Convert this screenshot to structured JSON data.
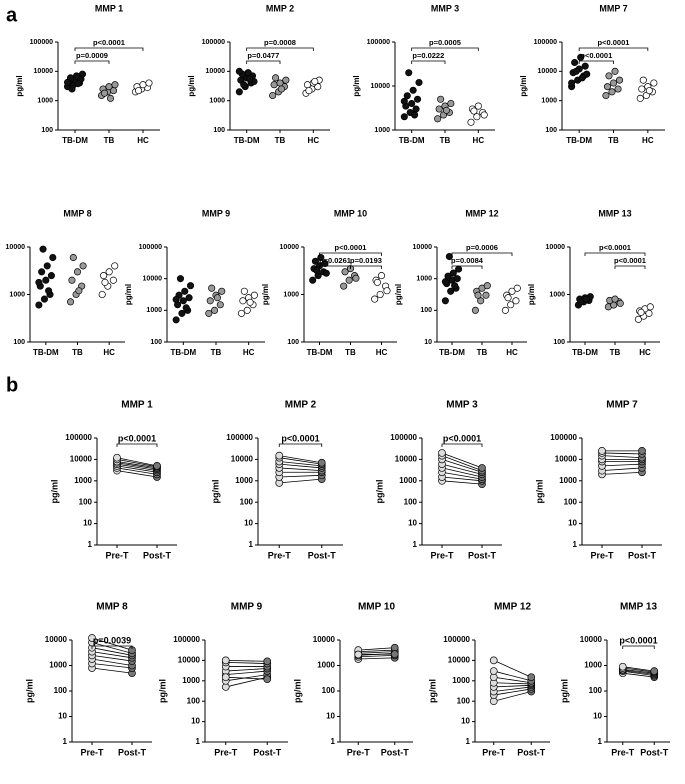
{
  "panel_labels": [
    "a",
    "b"
  ],
  "chart_data": [
    {
      "type": "dot",
      "title": "MMP 1",
      "ylabel": "pg/ml",
      "log_scale": true,
      "ylim": [
        100,
        100000
      ],
      "yticks": [
        100,
        1000,
        10000,
        100000
      ],
      "categories": [
        "TB-DM",
        "TB",
        "HC"
      ],
      "groups": [
        {
          "color": "#111111",
          "values": [
            3000,
            3500,
            4000,
            4500,
            5000,
            5500,
            6000,
            7000,
            8000,
            2500,
            3800,
            4200
          ]
        },
        {
          "color": "#999999",
          "values": [
            1500,
            2000,
            2200,
            2500,
            3000,
            3500,
            1800,
            1200
          ]
        },
        {
          "color": "#ffffff",
          "values": [
            2000,
            2500,
            2800,
            3000,
            3500,
            4000,
            2200
          ]
        }
      ],
      "annotations": [
        {
          "label": "p<0.0001",
          "between": [
            "TB-DM",
            "HC"
          ]
        },
        {
          "label": "p=0.0009",
          "between": [
            "TB-DM",
            "TB"
          ]
        }
      ]
    },
    {
      "type": "dot",
      "title": "MMP 2",
      "ylabel": "pg/ml",
      "log_scale": true,
      "ylim": [
        100,
        100000
      ],
      "yticks": [
        100,
        1000,
        10000,
        100000
      ],
      "categories": [
        "TB-DM",
        "TB",
        "HC"
      ],
      "groups": [
        {
          "color": "#111111",
          "values": [
            2000,
            3000,
            4000,
            5000,
            6000,
            7000,
            8000,
            9000,
            4500,
            3500,
            5500,
            10000
          ]
        },
        {
          "color": "#999999",
          "values": [
            1500,
            2000,
            3000,
            3500,
            4000,
            5000,
            6000,
            2500
          ]
        },
        {
          "color": "#ffffff",
          "values": [
            1800,
            2500,
            3000,
            3500,
            4000,
            5000,
            2200,
            4500
          ]
        }
      ],
      "annotations": [
        {
          "label": "p=0.0008",
          "between": [
            "TB-DM",
            "HC"
          ]
        },
        {
          "label": "p=0.0477",
          "between": [
            "TB-DM",
            "TB"
          ]
        }
      ]
    },
    {
      "type": "dot",
      "title": "MMP 3",
      "ylabel": "pg/ml",
      "log_scale": true,
      "ylim": [
        1000,
        100000
      ],
      "yticks": [
        1000,
        10000,
        100000
      ],
      "categories": [
        "TB-DM",
        "TB",
        "HC"
      ],
      "groups": [
        {
          "color": "#111111",
          "values": [
            2000,
            2500,
            3000,
            3500,
            4000,
            5000,
            6000,
            8000,
            12000,
            20000,
            2200,
            4500
          ]
        },
        {
          "color": "#999999",
          "values": [
            1800,
            2200,
            2500,
            3000,
            3500,
            4000,
            5000,
            2800
          ]
        },
        {
          "color": "#ffffff",
          "values": [
            1500,
            2000,
            2500,
            3000,
            3500,
            2200,
            2700
          ]
        }
      ],
      "annotations": [
        {
          "label": "p=0.0005",
          "between": [
            "TB-DM",
            "HC"
          ]
        },
        {
          "label": "p=0.0222",
          "between": [
            "TB-DM",
            "TB"
          ]
        }
      ]
    },
    {
      "type": "dot",
      "title": "MMP 7",
      "ylabel": "pg/ml",
      "log_scale": true,
      "ylim": [
        100,
        100000
      ],
      "yticks": [
        100,
        1000,
        10000,
        100000
      ],
      "categories": [
        "TB-DM",
        "TB",
        "HC"
      ],
      "groups": [
        {
          "color": "#111111",
          "values": [
            3000,
            5000,
            7000,
            9000,
            12000,
            15000,
            20000,
            30000,
            8000,
            10000,
            6000,
            4000
          ]
        },
        {
          "color": "#999999",
          "values": [
            1500,
            2000,
            2500,
            3000,
            4000,
            5000,
            7000,
            10000
          ]
        },
        {
          "color": "#ffffff",
          "values": [
            1200,
            1500,
            2000,
            2500,
            3000,
            4000,
            5000,
            2200
          ]
        }
      ],
      "annotations": [
        {
          "label": "p<0.0001",
          "between": [
            "TB-DM",
            "HC"
          ]
        },
        {
          "label": "p<0.0001",
          "between": [
            "TB-DM",
            "TB"
          ]
        }
      ]
    },
    {
      "type": "dot",
      "title": "MMP 8",
      "ylabel": "pg/ml",
      "log_scale": true,
      "ylim": [
        100,
        10000
      ],
      "yticks": [
        100,
        1000,
        10000
      ],
      "categories": [
        "TB-DM",
        "TB",
        "HC"
      ],
      "groups": [
        {
          "color": "#111111",
          "values": [
            600,
            800,
            1000,
            1500,
            2000,
            2500,
            3000,
            4000,
            6000,
            9000,
            1200,
            1800
          ]
        },
        {
          "color": "#999999",
          "values": [
            700,
            1000,
            1500,
            2000,
            3000,
            4000,
            6000,
            1200
          ]
        },
        {
          "color": "#ffffff",
          "values": [
            1000,
            1500,
            2000,
            2500,
            3000,
            4000,
            1800
          ]
        }
      ],
      "annotations": []
    },
    {
      "type": "dot",
      "title": "MMP 9",
      "ylabel": "pg/ml",
      "log_scale": true,
      "ylim": [
        100,
        100000
      ],
      "yticks": [
        100,
        1000,
        10000,
        100000
      ],
      "categories": [
        "TB-DM",
        "TB",
        "HC"
      ],
      "groups": [
        {
          "color": "#111111",
          "values": [
            500,
            800,
            1000,
            1500,
            2000,
            2500,
            3000,
            4000,
            6000,
            10000,
            1200,
            2200
          ]
        },
        {
          "color": "#999999",
          "values": [
            800,
            1000,
            1500,
            2000,
            3000,
            4000,
            5000,
            2500
          ]
        },
        {
          "color": "#ffffff",
          "values": [
            800,
            1000,
            1500,
            2000,
            2500,
            3000,
            4000,
            1800
          ]
        }
      ],
      "annotations": []
    },
    {
      "type": "dot",
      "title": "MMP 10",
      "ylabel": "pg/ml",
      "log_scale": true,
      "ylim": [
        100,
        10000
      ],
      "yticks": [
        100,
        1000,
        10000
      ],
      "categories": [
        "TB-DM",
        "TB",
        "HC"
      ],
      "groups": [
        {
          "color": "#111111",
          "values": [
            2000,
            2500,
            3000,
            3500,
            4000,
            4500,
            5000,
            6000,
            2800,
            3200
          ]
        },
        {
          "color": "#999999",
          "values": [
            1500,
            2000,
            2500,
            3000,
            3500,
            2200
          ]
        },
        {
          "color": "#ffffff",
          "values": [
            800,
            1000,
            1500,
            2000,
            2500,
            1200,
            1800
          ]
        }
      ],
      "annotations": [
        {
          "label": "p<0.0001",
          "between": [
            "TB-DM",
            "HC"
          ]
        },
        {
          "label": "p=0.0261",
          "between": [
            "TB-DM",
            "TB"
          ]
        },
        {
          "label": "p=0.0193",
          "between": [
            "TB",
            "HC"
          ]
        }
      ]
    },
    {
      "type": "dot",
      "title": "MMP 12",
      "ylabel": "pg/ml",
      "log_scale": true,
      "ylim": [
        10,
        10000
      ],
      "yticks": [
        10,
        100,
        1000,
        10000
      ],
      "categories": [
        "TB-DM",
        "TB",
        "HC"
      ],
      "groups": [
        {
          "color": "#111111",
          "values": [
            200,
            400,
            500,
            700,
            900,
            1000,
            1200,
            1500,
            2000,
            5000,
            600,
            800
          ]
        },
        {
          "color": "#999999",
          "values": [
            100,
            200,
            300,
            400,
            500,
            600,
            300
          ]
        },
        {
          "color": "#ffffff",
          "values": [
            100,
            150,
            200,
            300,
            400,
            500,
            250
          ]
        }
      ],
      "annotations": [
        {
          "label": "p=0.0006",
          "between": [
            "TB-DM",
            "HC"
          ]
        },
        {
          "label": "p=0.0084",
          "between": [
            "TB-DM",
            "TB"
          ]
        }
      ]
    },
    {
      "type": "dot",
      "title": "MMP 13",
      "ylabel": "pg/ml",
      "log_scale": true,
      "ylim": [
        100,
        10000
      ],
      "yticks": [
        100,
        1000,
        10000
      ],
      "categories": [
        "TB-DM",
        "TB",
        "HC"
      ],
      "groups": [
        {
          "color": "#111111",
          "values": [
            600,
            700,
            750,
            800,
            850,
            900,
            700,
            800
          ]
        },
        {
          "color": "#999999",
          "values": [
            550,
            600,
            700,
            750,
            800,
            650
          ]
        },
        {
          "color": "#ffffff",
          "values": [
            300,
            350,
            400,
            450,
            500,
            550,
            420
          ]
        }
      ],
      "annotations": [
        {
          "label": "p<0.0001",
          "between": [
            "TB-DM",
            "HC"
          ]
        },
        {
          "label": "p<0.0001",
          "between": [
            "TB",
            "HC"
          ]
        }
      ]
    },
    {
      "type": "paired",
      "title": "MMP 1",
      "ylabel": "pg/ml",
      "log_scale": true,
      "ylim": [
        1,
        100000
      ],
      "yticks": [
        1,
        10,
        100,
        1000,
        10000,
        100000
      ],
      "categories": [
        "Pre-T",
        "Post-T"
      ],
      "groups": [
        {
          "color": "#dddddd",
          "values": [
            3000,
            4000,
            5000,
            6000,
            7000,
            8000,
            10000,
            12000
          ]
        },
        {
          "color": "#777777",
          "values": [
            1500,
            2000,
            2500,
            3000,
            3500,
            4000,
            4500,
            5000
          ]
        }
      ],
      "annotations": [
        {
          "label": "p<0.0001",
          "between": [
            "Pre-T",
            "Post-T"
          ]
        }
      ]
    },
    {
      "type": "paired",
      "title": "MMP 2",
      "ylabel": "pg/ml",
      "log_scale": true,
      "ylim": [
        1,
        100000
      ],
      "yticks": [
        1,
        10,
        100,
        1000,
        10000,
        100000
      ],
      "categories": [
        "Pre-T",
        "Post-T"
      ],
      "groups": [
        {
          "color": "#dddddd",
          "values": [
            800,
            1500,
            2500,
            4000,
            6000,
            8000,
            12000,
            15000
          ]
        },
        {
          "color": "#777777",
          "values": [
            1200,
            1800,
            2500,
            3000,
            4000,
            5000,
            6000,
            7000
          ]
        }
      ],
      "annotations": [
        {
          "label": "p<0.0001",
          "between": [
            "Pre-T",
            "Post-T"
          ]
        }
      ]
    },
    {
      "type": "paired",
      "title": "MMP 3",
      "ylabel": "pg/ml",
      "log_scale": true,
      "ylim": [
        1,
        100000
      ],
      "yticks": [
        1,
        10,
        100,
        1000,
        10000,
        100000
      ],
      "categories": [
        "Pre-T",
        "Post-T"
      ],
      "groups": [
        {
          "color": "#dddddd",
          "values": [
            1000,
            1500,
            2500,
            4000,
            6000,
            10000,
            15000,
            20000
          ]
        },
        {
          "color": "#777777",
          "values": [
            700,
            1000,
            1200,
            1500,
            2000,
            2500,
            3000,
            4000
          ]
        }
      ],
      "annotations": [
        {
          "label": "p<0.0001",
          "between": [
            "Pre-T",
            "Post-T"
          ]
        }
      ]
    },
    {
      "type": "paired",
      "title": "MMP 7",
      "ylabel": "pg/ml",
      "log_scale": true,
      "ylim": [
        1,
        100000
      ],
      "yticks": [
        1,
        10,
        100,
        1000,
        10000,
        100000
      ],
      "categories": [
        "Pre-T",
        "Post-T"
      ],
      "groups": [
        {
          "color": "#dddddd",
          "values": [
            2000,
            3000,
            5000,
            8000,
            10000,
            15000,
            20000,
            25000
          ]
        },
        {
          "color": "#777777",
          "values": [
            2500,
            4000,
            6000,
            8000,
            10000,
            12000,
            18000,
            25000
          ]
        }
      ],
      "annotations": []
    },
    {
      "type": "paired",
      "title": "MMP 8",
      "ylabel": "pg/ml",
      "log_scale": true,
      "ylim": [
        1,
        10000
      ],
      "yticks": [
        1,
        10,
        100,
        1000,
        10000
      ],
      "categories": [
        "Pre-T",
        "Post-T"
      ],
      "groups": [
        {
          "color": "#dddddd",
          "values": [
            800,
            1200,
            1800,
            2500,
            3500,
            5000,
            8000,
            12000
          ]
        },
        {
          "color": "#777777",
          "values": [
            500,
            800,
            1000,
            1500,
            2000,
            2500,
            3000,
            4000
          ]
        }
      ],
      "annotations": [
        {
          "label": "p=0.0039",
          "between": [
            "Pre-T",
            "Post-T"
          ]
        }
      ]
    },
    {
      "type": "paired",
      "title": "MMP 9",
      "ylabel": "pg/ml",
      "log_scale": true,
      "ylim": [
        1,
        100000
      ],
      "yticks": [
        1,
        10,
        100,
        1000,
        10000,
        100000
      ],
      "categories": [
        "Pre-T",
        "Post-T"
      ],
      "groups": [
        {
          "color": "#dddddd",
          "values": [
            500,
            1000,
            2000,
            3000,
            5000,
            8000,
            10000,
            1500
          ]
        },
        {
          "color": "#777777",
          "values": [
            1500,
            2000,
            3000,
            4000,
            5000,
            7000,
            9000,
            1200
          ]
        }
      ],
      "annotations": []
    },
    {
      "type": "paired",
      "title": "MMP 10",
      "ylabel": "pg/ml",
      "log_scale": true,
      "ylim": [
        1,
        10000
      ],
      "yticks": [
        1,
        10,
        100,
        1000,
        10000
      ],
      "categories": [
        "Pre-T",
        "Post-T"
      ],
      "groups": [
        {
          "color": "#dddddd",
          "values": [
            1800,
            2200,
            2500,
            3000,
            3500,
            4000,
            2700
          ]
        },
        {
          "color": "#777777",
          "values": [
            2000,
            2500,
            3000,
            3500,
            4000,
            5000,
            2800
          ]
        }
      ],
      "annotations": []
    },
    {
      "type": "paired",
      "title": "MMP 12",
      "ylabel": "pg/ml",
      "log_scale": true,
      "ylim": [
        1,
        100000
      ],
      "yticks": [
        1,
        10,
        100,
        1000,
        10000,
        100000
      ],
      "categories": [
        "Pre-T",
        "Post-T"
      ],
      "groups": [
        {
          "color": "#dddddd",
          "values": [
            100,
            200,
            300,
            500,
            800,
            1500,
            3000,
            10000
          ]
        },
        {
          "color": "#777777",
          "values": [
            300,
            400,
            500,
            600,
            700,
            800,
            1000,
            1500
          ]
        }
      ],
      "annotations": []
    },
    {
      "type": "paired",
      "title": "MMP 13",
      "ylabel": "pg/ml",
      "log_scale": true,
      "ylim": [
        1,
        10000
      ],
      "yticks": [
        1,
        10,
        100,
        1000,
        10000
      ],
      "categories": [
        "Pre-T",
        "Post-T"
      ],
      "groups": [
        {
          "color": "#dddddd",
          "values": [
            500,
            600,
            650,
            700,
            800,
            900
          ]
        },
        {
          "color": "#777777",
          "values": [
            350,
            400,
            450,
            500,
            550,
            600
          ]
        }
      ],
      "annotations": [
        {
          "label": "p<0.0001",
          "between": [
            "Pre-T",
            "Post-T"
          ]
        }
      ]
    }
  ]
}
